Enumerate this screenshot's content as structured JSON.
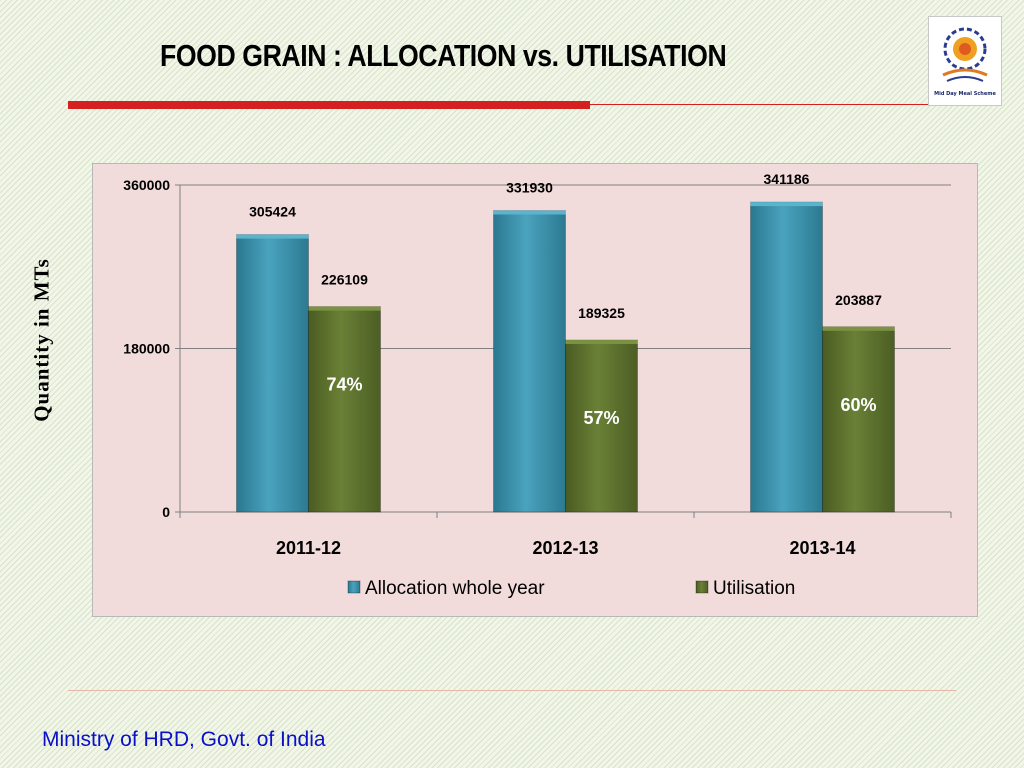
{
  "slide": {
    "title": "FOOD GRAIN : ALLOCATION vs. UTILISATION",
    "footer": "Ministry of HRD, Govt. of India",
    "logo_caption": "Mid Day Meal Scheme"
  },
  "colors": {
    "allocation": "#3a8fa8",
    "utilisation": "#5a6e2c",
    "panel": "#f2dcdb",
    "accent_rule": "#d42020",
    "footer_text": "#0a10c8"
  },
  "chart_data": {
    "type": "bar",
    "categories": [
      "2011-12",
      "2012-13",
      "2013-14"
    ],
    "series": [
      {
        "name": "Allocation whole year",
        "values": [
          305424,
          331930,
          341186
        ]
      },
      {
        "name": "Utilisation",
        "values": [
          226109,
          189325,
          203887
        ]
      }
    ],
    "bar_annotations": [
      "74%",
      "57%",
      "60%"
    ],
    "ylabel": "Quantity in MTs",
    "yticks": [
      0,
      180000,
      360000
    ],
    "ylim": [
      0,
      360000
    ],
    "grid": true,
    "legend": "bottom"
  }
}
